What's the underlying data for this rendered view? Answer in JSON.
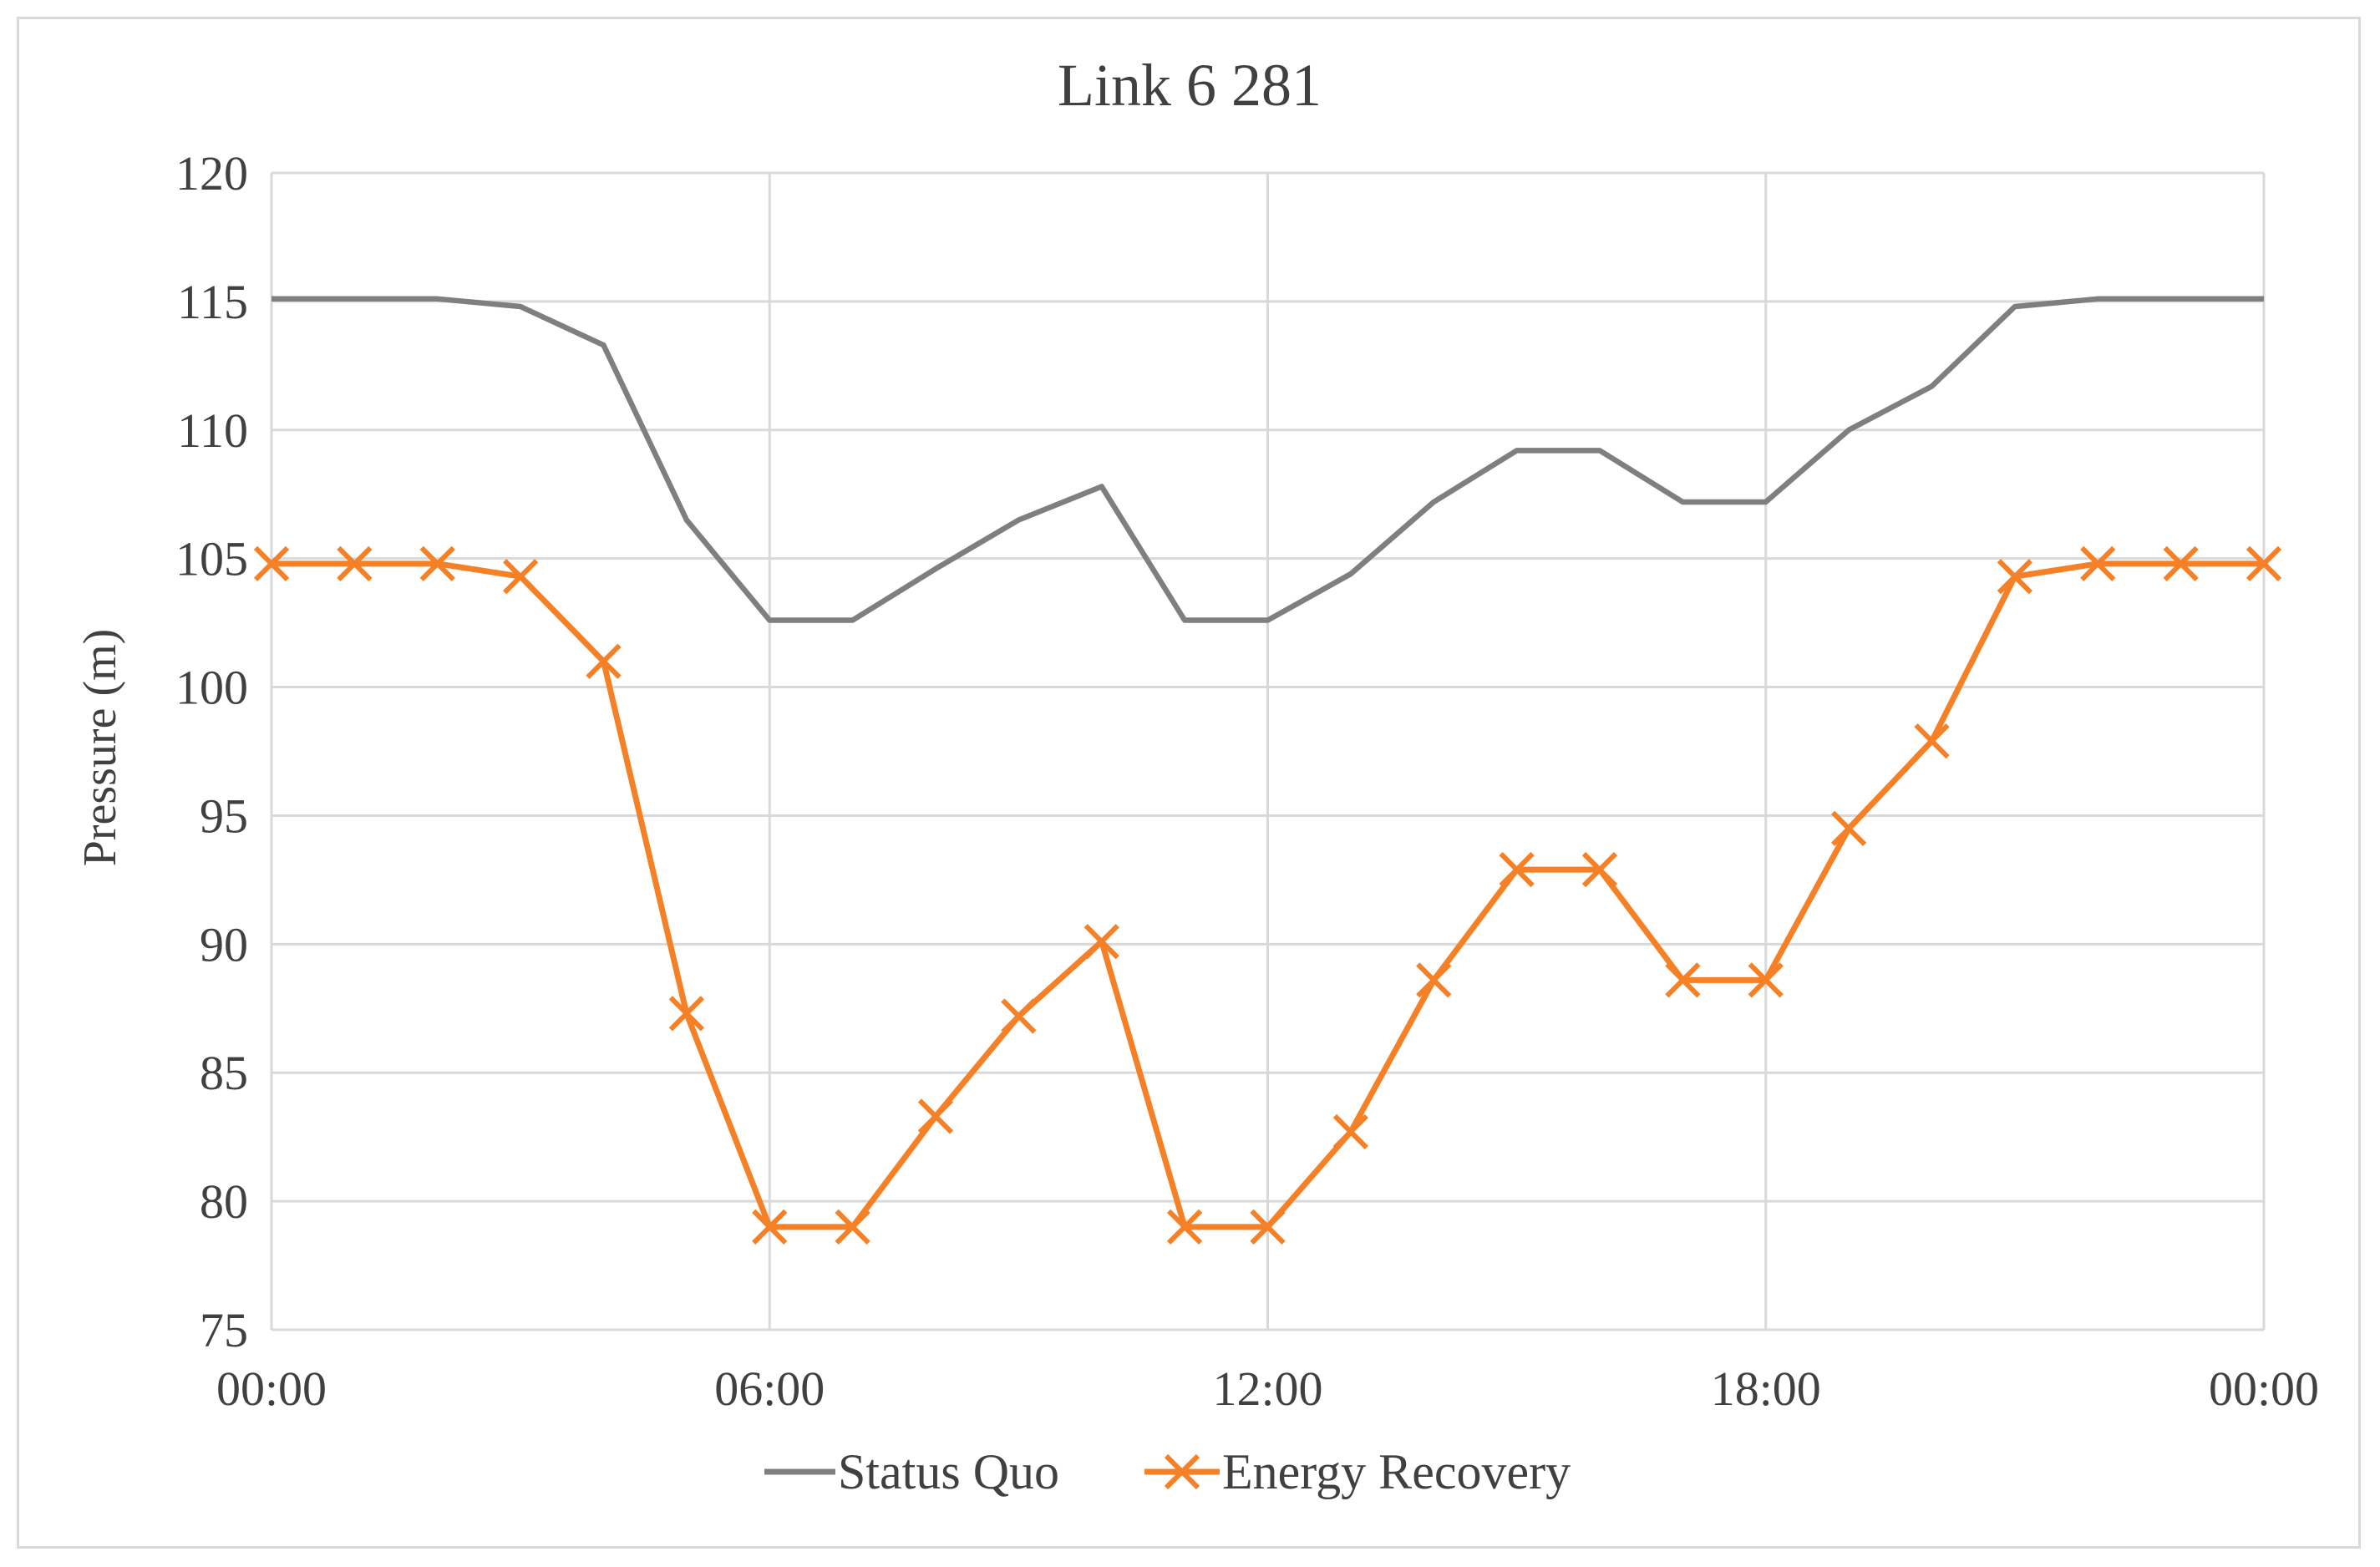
{
  "chart_data": {
    "type": "line",
    "title": "Link 6 281",
    "xlabel": "",
    "ylabel": "Pressure (m)",
    "ylim": [
      75,
      120
    ],
    "yticks": [
      75,
      80,
      85,
      90,
      95,
      100,
      105,
      110,
      115,
      120
    ],
    "xlim": [
      0,
      24
    ],
    "x_tick_labels": [
      "00:00",
      "06:00",
      "12:00",
      "18:00",
      "00:00"
    ],
    "grid": true,
    "legend_position": "bottom",
    "x": [
      "00:00",
      "01:00",
      "02:00",
      "03:00",
      "04:00",
      "05:00",
      "06:00",
      "07:00",
      "08:00",
      "09:00",
      "10:00",
      "11:00",
      "12:00",
      "13:00",
      "14:00",
      "15:00",
      "16:00",
      "17:00",
      "18:00",
      "19:00",
      "20:00",
      "21:00",
      "22:00",
      "23:00",
      "00:00"
    ],
    "series": [
      {
        "name": "Status Quo",
        "color": "#7f7f7f",
        "marker": "none",
        "values": [
          115.1,
          115.1,
          115.1,
          114.8,
          113.3,
          106.5,
          102.6,
          102.6,
          104.6,
          106.5,
          107.8,
          102.6,
          102.6,
          104.4,
          107.2,
          109.2,
          109.2,
          107.2,
          107.2,
          110.0,
          111.7,
          114.8,
          115.1,
          115.1,
          115.1
        ]
      },
      {
        "name": "Energy Recovery",
        "color": "#f58025",
        "marker": "x",
        "values": [
          104.8,
          104.8,
          104.8,
          104.3,
          101.0,
          87.3,
          79.0,
          79.0,
          83.3,
          87.2,
          90.1,
          79.0,
          79.0,
          82.7,
          88.6,
          92.9,
          92.9,
          88.6,
          88.6,
          94.5,
          97.9,
          104.3,
          104.8,
          104.8,
          104.8
        ]
      }
    ]
  }
}
